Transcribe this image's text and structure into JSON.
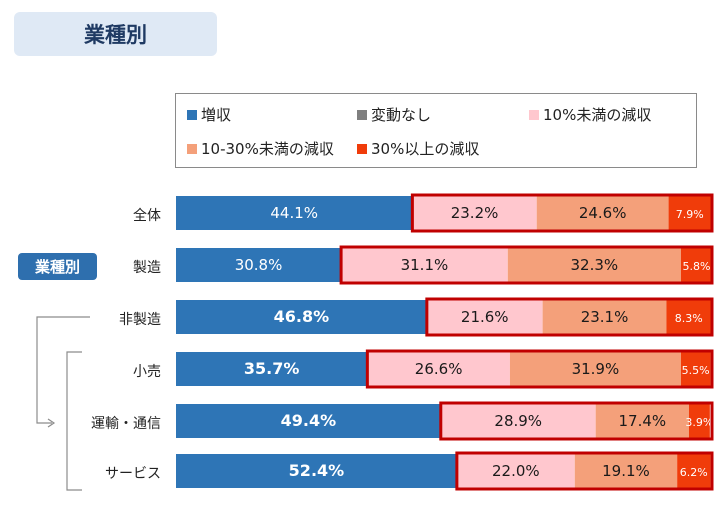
{
  "header": {
    "title": "業種別"
  },
  "side_badge": {
    "label": "業種別"
  },
  "legend": {
    "items": [
      {
        "label": "増収",
        "color": "#2e75b6"
      },
      {
        "label": "変動なし",
        "color": "#7f7f7f"
      },
      {
        "label": "10%未満の減収",
        "color": "#ffc7ce"
      },
      {
        "label": "10-30%未満の減収",
        "color": "#f4a07a"
      },
      {
        "label": "30%以上の減収",
        "color": "#f03c0a"
      }
    ]
  },
  "chart_data": {
    "type": "bar",
    "stacked": true,
    "orientation": "horizontal",
    "categories": [
      "全体",
      "製造",
      "非製造",
      "小売",
      "運輸・通信",
      "サービス"
    ],
    "series": [
      {
        "name": "増収",
        "values": [
          44.1,
          30.8,
          46.8,
          35.7,
          49.4,
          52.4
        ],
        "color": "#2e75b6"
      },
      {
        "name": "変動なし",
        "values": [
          0,
          0,
          0,
          0,
          0,
          0
        ],
        "color": "#7f7f7f"
      },
      {
        "name": "10%未満の減収",
        "values": [
          23.2,
          31.1,
          21.6,
          26.6,
          28.9,
          22.0
        ],
        "color": "#ffc7ce"
      },
      {
        "name": "10-30%未満の減収",
        "values": [
          24.6,
          32.3,
          23.1,
          31.9,
          17.4,
          19.1
        ],
        "color": "#f4a07a"
      },
      {
        "name": "30%以上の減収",
        "values": [
          7.9,
          5.8,
          8.3,
          5.5,
          3.9,
          6.2
        ],
        "color": "#f03c0a"
      }
    ],
    "data_labels": [
      [
        "44.1%",
        "",
        "23.2%",
        "24.6%",
        "7.9%"
      ],
      [
        "30.8%",
        "",
        "31.1%",
        "32.3%",
        "5.8%"
      ],
      [
        "46.8%",
        "",
        "21.6%",
        "23.1%",
        "8.3%"
      ],
      [
        "35.7%",
        "",
        "26.6%",
        "31.9%",
        "5.5%"
      ],
      [
        "49.4%",
        "",
        "28.9%",
        "17.4%",
        "3.9%"
      ],
      [
        "52.4%",
        "",
        "22.0%",
        "19.1%",
        "6.2%"
      ]
    ],
    "highlight_color": "#c00000",
    "bracket_color": "#8c8c8c",
    "xlim": [
      0,
      100
    ]
  }
}
